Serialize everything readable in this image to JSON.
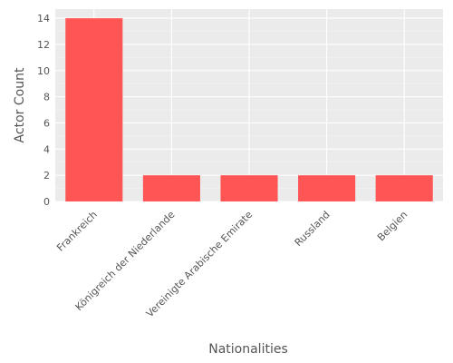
{
  "chart_data": {
    "type": "bar",
    "title": "",
    "xlabel": "Nationalities",
    "ylabel": "Actor Count",
    "categories": [
      "Frankreich",
      "Königreich der Niederlande",
      "Vereinigte Arabische Emirate",
      "Russland",
      "Belgien"
    ],
    "values": [
      14,
      2,
      2,
      2,
      2
    ],
    "ylim": [
      0,
      14.7
    ],
    "yticks": [
      0,
      2,
      4,
      6,
      8,
      10,
      12,
      14
    ],
    "grid": true,
    "legend": "none",
    "colors": {
      "bar": "#FF5555",
      "panel_background": "#EBEBEB",
      "gridline": "#FFFFFF",
      "text": "#555555"
    }
  }
}
